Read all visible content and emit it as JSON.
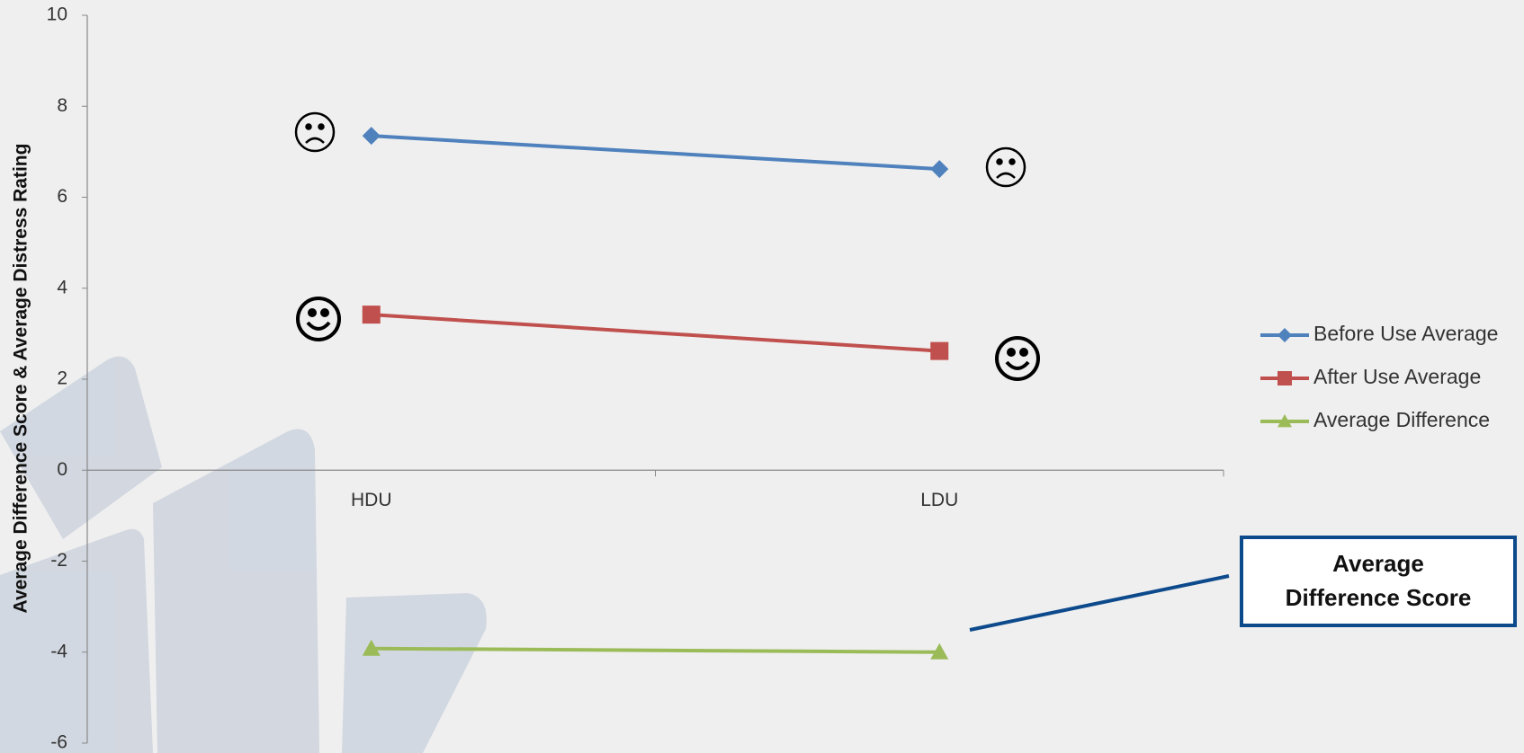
{
  "chart_data": {
    "type": "line",
    "y_label": "Average Difference Score & Average Distress Rating",
    "categories": [
      "HDU",
      "LDU"
    ],
    "series": [
      {
        "name": "Before Use Average",
        "color": "#4f81bd",
        "marker": "diamond",
        "values": [
          7.35,
          6.62
        ]
      },
      {
        "name": "After Use Average",
        "color": "#c0504d",
        "marker": "square",
        "values": [
          3.42,
          2.62
        ]
      },
      {
        "name": "Average Difference",
        "color": "#9bbb59",
        "marker": "triangle",
        "values": [
          -3.92,
          -4.0
        ]
      }
    ],
    "ylim": [
      -6,
      10
    ],
    "yticks": [
      -6,
      -4,
      -2,
      0,
      2,
      4,
      6,
      8,
      10
    ],
    "legend": "right",
    "annotation": "Average Difference Score"
  }
}
